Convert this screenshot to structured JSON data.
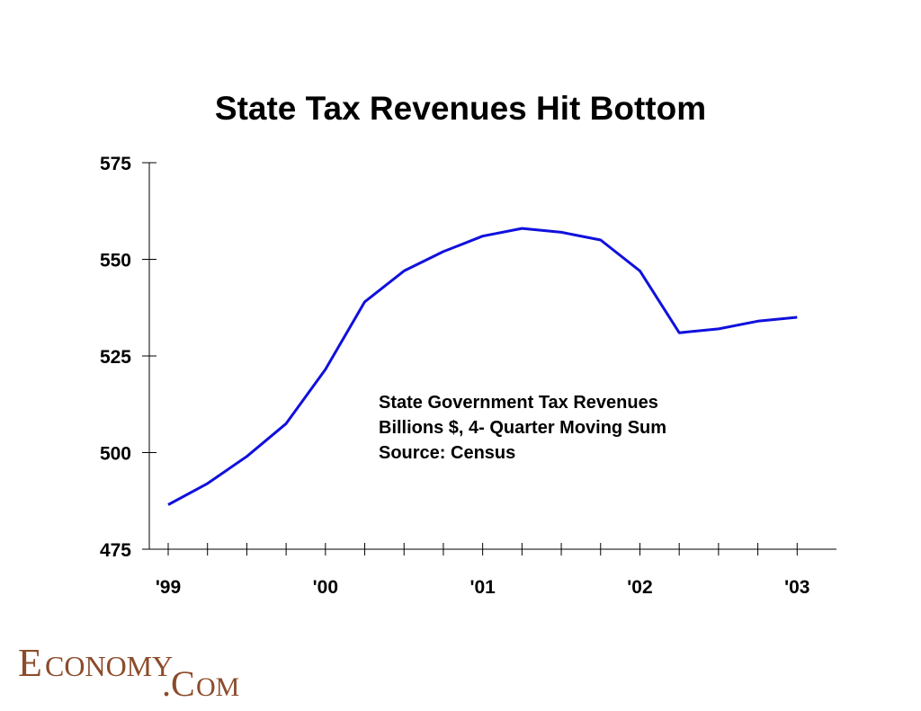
{
  "chart_data": {
    "type": "line",
    "title": "State Tax Revenues Hit Bottom",
    "xlabel": "",
    "ylabel": "",
    "ylim": [
      475,
      575
    ],
    "yticks": [
      575,
      550,
      525,
      500,
      475
    ],
    "xtick_labels": [
      "'99",
      "'00",
      "'01",
      "'02",
      "'03"
    ],
    "x_range": [
      1999,
      2003.25
    ],
    "grid": false,
    "series": [
      {
        "color": "#1010dd",
        "x": [
          1999.0,
          1999.25,
          1999.5,
          1999.75,
          2000.0,
          2000.25,
          2000.5,
          2000.75,
          2001.0,
          2001.25,
          2001.5,
          2001.75,
          2002.0,
          2002.25,
          2002.5,
          2002.75,
          2003.0
        ],
        "y": [
          486.5,
          492,
          499,
          507.5,
          521.5,
          539,
          547,
          552,
          556,
          558,
          557,
          555,
          547,
          531,
          532,
          534,
          535
        ]
      }
    ],
    "annotation": [
      "State Government Tax Revenues",
      "Billions $, 4- Quarter Moving Sum",
      "Source: Census"
    ]
  },
  "logo": {
    "text": "ECONOMY.COM",
    "color": "#8c4b2a"
  }
}
